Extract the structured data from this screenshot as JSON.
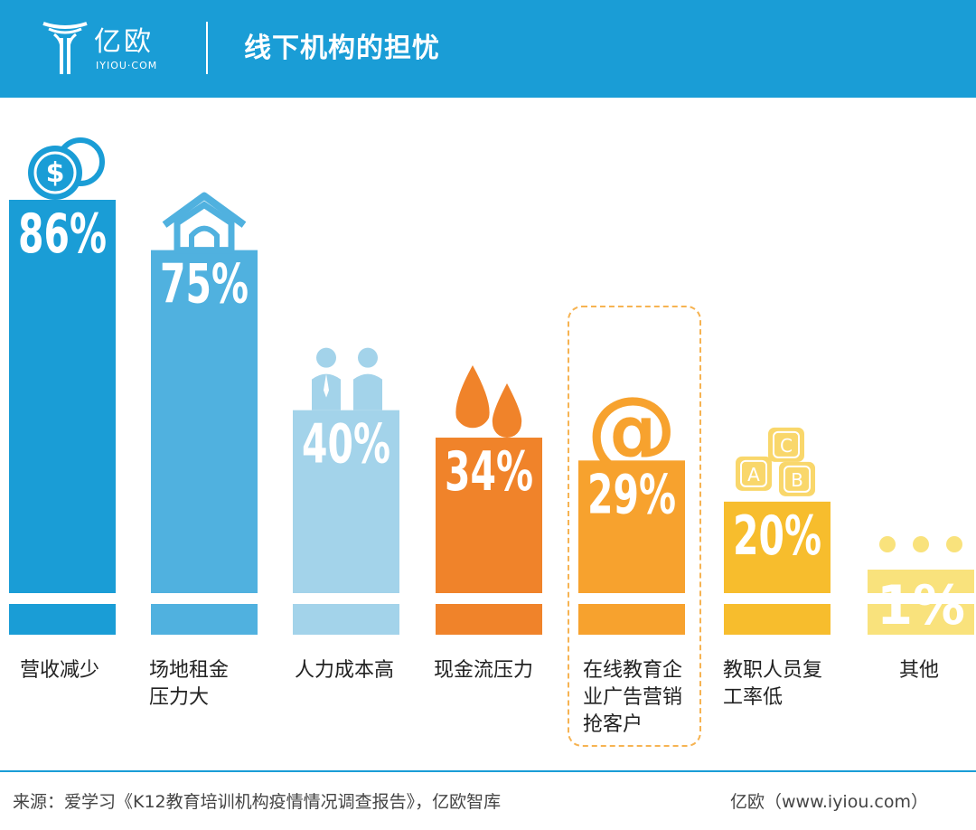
{
  "header": {
    "logo_text": "亿欧",
    "logo_sub": "IYIOU·COM",
    "title": "线下机构的担忧"
  },
  "chart_data": {
    "type": "bar",
    "title": "线下机构的担忧",
    "ylim": [
      0,
      100
    ],
    "grid": false,
    "categories": [
      {
        "label_lines": [
          "营收减少"
        ],
        "value": 86,
        "value_label": "86%",
        "color": "#1a9dd6",
        "icon": "dollar-coins-icon"
      },
      {
        "label_lines": [
          "场地租金",
          "压力大"
        ],
        "value": 75,
        "value_label": "75%",
        "color": "#50b1df",
        "icon": "house-icon"
      },
      {
        "label_lines": [
          "人力成本高"
        ],
        "value": 40,
        "value_label": "40%",
        "color": "#a3d3ea",
        "icon": "people-icon"
      },
      {
        "label_lines": [
          "现金流压力"
        ],
        "value": 34,
        "value_label": "34%",
        "color": "#f0832a",
        "icon": "water-drops-icon"
      },
      {
        "label_lines": [
          "在线教育企",
          "业广告营销",
          "抢客户"
        ],
        "value": 29,
        "value_label": "29%",
        "color": "#f7a22e",
        "icon": "at-sign-icon"
      },
      {
        "label_lines": [
          "教职人员复",
          "工率低"
        ],
        "value": 20,
        "value_label": "20%",
        "color": "#f7bd2d",
        "icon": "abc-blocks-icon"
      },
      {
        "label_lines": [
          "其他"
        ],
        "value": 1,
        "value_label": "1%",
        "color": "#f9e27c",
        "icon": "dots-icon"
      }
    ],
    "highlighted_category_index": 4
  },
  "footer": {
    "source": "来源：爱学习《K12教育培训机构疫情情况调查报告》，亿欧智库",
    "credit": "亿欧（www.iyiou.com）"
  }
}
